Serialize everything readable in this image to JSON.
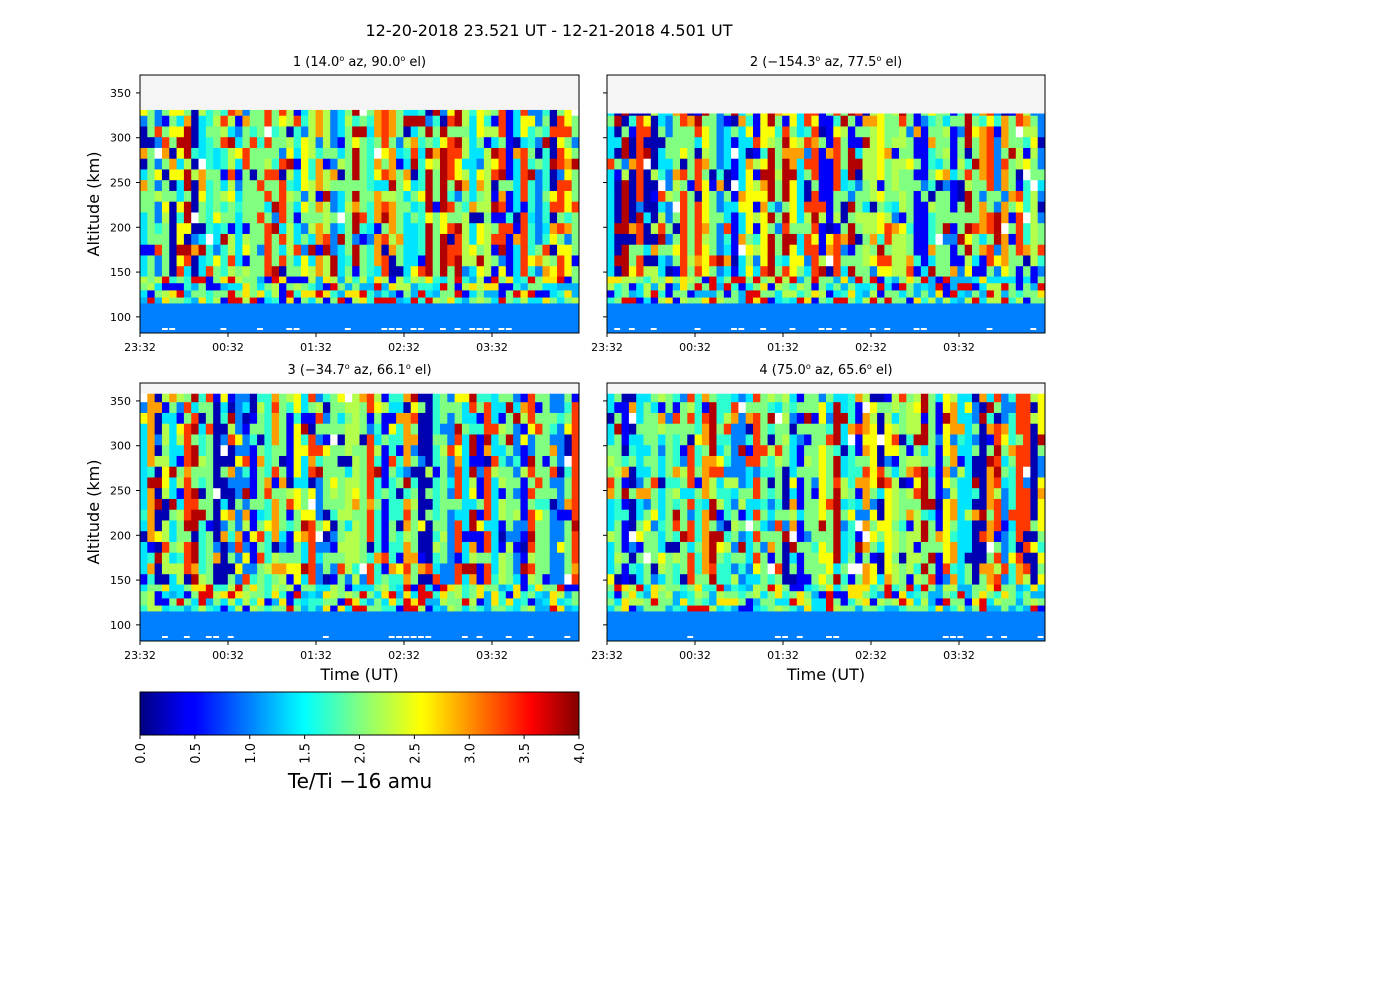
{
  "figure": {
    "title": "12-20-2018 23.521 UT - 12-21-2018 4.501 UT"
  },
  "chart_data": [
    {
      "type": "heatmap",
      "title": "1 (14.0° az, 90.0° el)",
      "title_parts": {
        "prefix": "1 (14.0",
        "sup1": "o",
        "mid": " az,  90.0",
        "sup2": "o",
        "suffix": " el)"
      },
      "xlabel": "Time (UT)",
      "ylabel": "Altitude (km)",
      "x_ticks": [
        "23:32",
        "00:32",
        "01:32",
        "02:32",
        "03:32"
      ],
      "y_ticks": [
        100,
        150,
        200,
        250,
        300,
        350
      ],
      "ylim": [
        82,
        370
      ],
      "data_top_km": 331,
      "seed": 11
    },
    {
      "type": "heatmap",
      "title": "2 (−154.3° az, 77.5° el)",
      "title_parts": {
        "prefix": "2 (−154.3",
        "sup1": "o",
        "mid": " az,  77.5",
        "sup2": "o",
        "suffix": " el)"
      },
      "xlabel": "Time (UT)",
      "ylabel": "Altitude (km)",
      "x_ticks": [
        "23:32",
        "00:32",
        "01:32",
        "02:32",
        "03:32"
      ],
      "y_ticks": [
        100,
        150,
        200,
        250,
        300,
        350
      ],
      "ylim": [
        82,
        370
      ],
      "data_top_km": 327,
      "seed": 23
    },
    {
      "type": "heatmap",
      "title": "3 (−34.7° az, 66.1° el)",
      "title_parts": {
        "prefix": "3 (−34.7",
        "sup1": "o",
        "mid": " az,  66.1",
        "sup2": "o",
        "suffix": " el)"
      },
      "xlabel": "Time (UT)",
      "ylabel": "Altitude (km)",
      "x_ticks": [
        "23:32",
        "00:32",
        "01:32",
        "02:32",
        "03:32"
      ],
      "y_ticks": [
        100,
        150,
        200,
        250,
        300,
        350
      ],
      "ylim": [
        82,
        370
      ],
      "data_top_km": 358,
      "seed": 37
    },
    {
      "type": "heatmap",
      "title": "4 (75.0° az, 65.6° el)",
      "title_parts": {
        "prefix": "4 (75.0",
        "sup1": "o",
        "mid": " az,  65.6",
        "sup2": "o",
        "suffix": " el)"
      },
      "xlabel": "Time (UT)",
      "ylabel": "Altitude (km)",
      "x_ticks": [
        "23:32",
        "00:32",
        "01:32",
        "02:32",
        "03:32"
      ],
      "y_ticks": [
        100,
        150,
        200,
        250,
        300,
        350
      ],
      "ylim": [
        82,
        370
      ],
      "data_top_km": 358,
      "seed": 51
    }
  ],
  "colorbar": {
    "label": "Te/Ti  −16 amu",
    "colormap": "jet",
    "range": [
      0.0,
      4.0
    ],
    "ticks": [
      "0.0",
      "0.5",
      "1.0",
      "1.5",
      "2.0",
      "2.5",
      "3.0",
      "3.5",
      "4.0"
    ]
  },
  "colors": {
    "nan_background": "#f5f5f5",
    "low_altitude_fill": "#0080ff"
  }
}
